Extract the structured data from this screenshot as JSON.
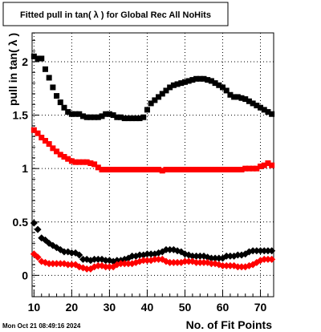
{
  "date_stamp": "Mon Oct 21 08:49:16 2024",
  "chart_data": {
    "type": "scatter",
    "title": "Fitted pull in tan( λ ) for Global Rec All NoHits",
    "xlabel": "No. of Fit Points",
    "ylabel": "pull in tan( λ )",
    "xlim": [
      9.5,
      73.5
    ],
    "ylim": [
      -0.2,
      2.27
    ],
    "x_ticks": [
      10,
      20,
      30,
      40,
      50,
      60,
      70
    ],
    "x_tick_labels": [
      "10",
      "20",
      "30",
      "40",
      "50",
      "60",
      "70"
    ],
    "y_ticks": [
      0,
      0.5,
      1,
      1.5,
      2
    ],
    "y_tick_labels": [
      "0",
      "0.5",
      "1",
      "1.5",
      "2"
    ],
    "grid": true,
    "legend": "none",
    "series": [
      {
        "color": "#000000",
        "marker": "square",
        "x": [
          10,
          11,
          12,
          13,
          14,
          15,
          16,
          17,
          18,
          19,
          20,
          21,
          22,
          23,
          24,
          25,
          26,
          27,
          28,
          29,
          30,
          31,
          32,
          33,
          34,
          35,
          36,
          37,
          38,
          39,
          40,
          41,
          42,
          43,
          44,
          45,
          46,
          47,
          48,
          49,
          50,
          51,
          52,
          53,
          54,
          55,
          56,
          57,
          58,
          59,
          60,
          61,
          62,
          63,
          64,
          65,
          66,
          67,
          68,
          69,
          70,
          71,
          72,
          73
        ],
        "values": [
          2.05,
          2.03,
          2.03,
          1.93,
          1.85,
          1.76,
          1.68,
          1.62,
          1.57,
          1.53,
          1.51,
          1.51,
          1.51,
          1.49,
          1.48,
          1.48,
          1.48,
          1.48,
          1.49,
          1.51,
          1.51,
          1.5,
          1.48,
          1.48,
          1.47,
          1.47,
          1.47,
          1.47,
          1.47,
          1.48,
          1.55,
          1.61,
          1.64,
          1.67,
          1.7,
          1.73,
          1.76,
          1.78,
          1.79,
          1.8,
          1.81,
          1.82,
          1.83,
          1.84,
          1.84,
          1.84,
          1.83,
          1.82,
          1.8,
          1.78,
          1.76,
          1.73,
          1.69,
          1.67,
          1.67,
          1.66,
          1.65,
          1.63,
          1.61,
          1.59,
          1.57,
          1.55,
          1.53,
          1.51
        ]
      },
      {
        "color": "#ff0000",
        "marker": "square",
        "x": [
          10,
          11,
          12,
          13,
          14,
          15,
          16,
          17,
          18,
          19,
          20,
          21,
          22,
          23,
          24,
          25,
          26,
          27,
          28,
          29,
          30,
          31,
          32,
          33,
          34,
          35,
          36,
          37,
          38,
          39,
          40,
          41,
          42,
          43,
          44,
          45,
          46,
          47,
          48,
          49,
          50,
          51,
          52,
          53,
          54,
          55,
          56,
          57,
          58,
          59,
          60,
          61,
          62,
          63,
          64,
          65,
          66,
          67,
          68,
          69,
          70,
          71,
          72,
          73
        ],
        "values": [
          1.36,
          1.33,
          1.29,
          1.26,
          1.23,
          1.19,
          1.16,
          1.13,
          1.11,
          1.09,
          1.07,
          1.06,
          1.06,
          1.06,
          1.06,
          1.05,
          1.04,
          1.01,
          0.99,
          0.99,
          0.99,
          0.99,
          0.99,
          0.99,
          0.99,
          0.99,
          0.99,
          0.99,
          0.99,
          0.99,
          0.99,
          0.99,
          0.99,
          0.99,
          0.98,
          0.99,
          0.99,
          0.99,
          0.99,
          0.99,
          0.99,
          0.99,
          0.99,
          0.99,
          0.99,
          0.99,
          0.99,
          0.99,
          0.99,
          0.99,
          0.99,
          0.99,
          0.99,
          0.99,
          0.99,
          0.99,
          1.0,
          1.0,
          1.0,
          1.0,
          1.02,
          1.03,
          1.05,
          1.03
        ]
      },
      {
        "color": "#000000",
        "marker": "diamond",
        "x": [
          10,
          11,
          12,
          13,
          14,
          15,
          16,
          17,
          18,
          19,
          20,
          21,
          22,
          23,
          24,
          25,
          26,
          27,
          28,
          29,
          30,
          31,
          32,
          33,
          34,
          35,
          36,
          37,
          38,
          39,
          40,
          41,
          42,
          43,
          44,
          45,
          46,
          47,
          48,
          49,
          50,
          51,
          52,
          53,
          54,
          55,
          56,
          57,
          58,
          59,
          60,
          61,
          62,
          63,
          64,
          65,
          66,
          67,
          68,
          69,
          70,
          71,
          72,
          73
        ],
        "values": [
          0.49,
          0.43,
          0.35,
          0.33,
          0.3,
          0.28,
          0.26,
          0.24,
          0.22,
          0.22,
          0.21,
          0.21,
          0.19,
          0.15,
          0.15,
          0.14,
          0.15,
          0.15,
          0.15,
          0.14,
          0.14,
          0.13,
          0.14,
          0.14,
          0.15,
          0.16,
          0.18,
          0.18,
          0.19,
          0.19,
          0.2,
          0.2,
          0.2,
          0.21,
          0.22,
          0.24,
          0.24,
          0.24,
          0.23,
          0.22,
          0.2,
          0.19,
          0.18,
          0.18,
          0.18,
          0.18,
          0.17,
          0.16,
          0.16,
          0.16,
          0.16,
          0.18,
          0.18,
          0.18,
          0.19,
          0.19,
          0.2,
          0.22,
          0.23,
          0.23,
          0.23,
          0.23,
          0.23,
          0.23
        ]
      },
      {
        "color": "#ff0000",
        "marker": "diamond",
        "x": [
          10,
          11,
          12,
          13,
          14,
          15,
          16,
          17,
          18,
          19,
          20,
          21,
          22,
          23,
          24,
          25,
          26,
          27,
          28,
          29,
          30,
          31,
          32,
          33,
          34,
          35,
          36,
          37,
          38,
          39,
          40,
          41,
          42,
          43,
          44,
          45,
          46,
          47,
          48,
          49,
          50,
          51,
          52,
          53,
          54,
          55,
          56,
          57,
          58,
          59,
          60,
          61,
          62,
          63,
          64,
          65,
          66,
          67,
          68,
          69,
          70,
          71,
          72,
          73
        ],
        "values": [
          0.2,
          0.17,
          0.13,
          0.12,
          0.11,
          0.11,
          0.11,
          0.11,
          0.11,
          0.1,
          0.1,
          0.1,
          0.08,
          0.07,
          0.06,
          0.06,
          0.08,
          0.09,
          0.09,
          0.08,
          0.08,
          0.08,
          0.1,
          0.11,
          0.11,
          0.11,
          0.11,
          0.12,
          0.13,
          0.14,
          0.14,
          0.14,
          0.15,
          0.15,
          0.15,
          0.13,
          0.12,
          0.12,
          0.12,
          0.12,
          0.13,
          0.13,
          0.13,
          0.12,
          0.12,
          0.12,
          0.12,
          0.11,
          0.11,
          0.1,
          0.09,
          0.09,
          0.09,
          0.09,
          0.08,
          0.08,
          0.08,
          0.09,
          0.1,
          0.12,
          0.14,
          0.15,
          0.15,
          0.15
        ]
      }
    ]
  }
}
